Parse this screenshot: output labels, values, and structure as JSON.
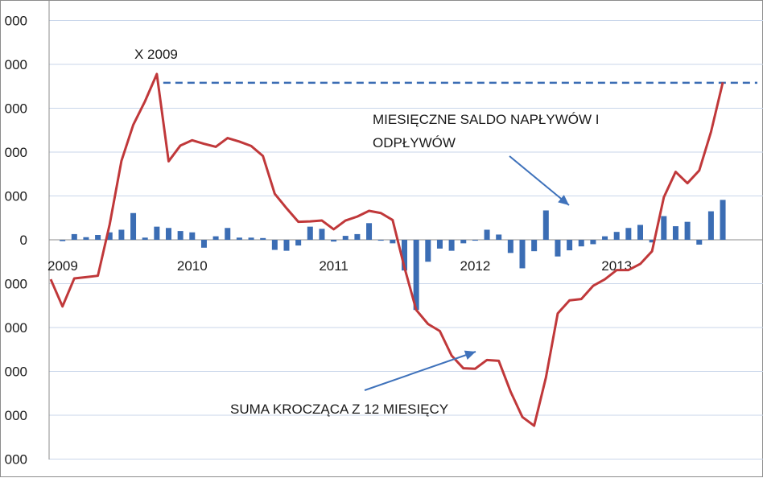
{
  "chart_data": {
    "type": "bar+line",
    "title": "",
    "xlabel": "",
    "ylabel": "",
    "y_tick_labels": [
      "000",
      "000",
      "000",
      "000",
      "000",
      "0",
      "000",
      "000",
      "000",
      "000",
      "000"
    ],
    "x_tick_labels": [
      "2009",
      "2010",
      "2011",
      "2012",
      "2013"
    ],
    "ylim": [
      -5000,
      5000
    ],
    "grid": "horizontal",
    "annotations": {
      "peak_label": "X 2009",
      "bars_label_line1": "MIESIĘCZNE SALDO NAPŁYWÓW I",
      "bars_label_line2": "ODPŁYWÓW",
      "line_label": "SUMA KROCZĄCA Z 12 MIESIĘCY"
    },
    "reference_line": {
      "value": 3580,
      "style": "dashed"
    },
    "x_months": [
      "2009-01",
      "2009-02",
      "2009-03",
      "2009-04",
      "2009-05",
      "2009-06",
      "2009-07",
      "2009-08",
      "2009-09",
      "2009-10",
      "2009-11",
      "2009-12",
      "2010-01",
      "2010-02",
      "2010-03",
      "2010-04",
      "2010-05",
      "2010-06",
      "2010-07",
      "2010-08",
      "2010-09",
      "2010-10",
      "2010-11",
      "2010-12",
      "2011-01",
      "2011-02",
      "2011-03",
      "2011-04",
      "2011-05",
      "2011-06",
      "2011-07",
      "2011-08",
      "2011-09",
      "2011-10",
      "2011-11",
      "2011-12",
      "2012-01",
      "2012-02",
      "2012-03",
      "2012-04",
      "2012-05",
      "2012-06",
      "2012-07",
      "2012-08",
      "2012-09",
      "2012-10",
      "2012-11",
      "2012-12",
      "2013-01",
      "2013-02",
      "2013-03",
      "2013-04",
      "2013-05",
      "2013-06",
      "2013-07",
      "2013-08",
      "2013-09",
      "2013-10",
      "2013-11",
      "2013-12"
    ],
    "series": [
      {
        "type": "bar",
        "color": "#3b6db4",
        "values": [
          0,
          -30,
          130,
          60,
          110,
          170,
          230,
          610,
          50,
          300,
          270,
          200,
          170,
          -180,
          80,
          270,
          50,
          50,
          40,
          -230,
          -250,
          -130,
          300,
          250,
          -40,
          90,
          130,
          380,
          -20,
          -80,
          -700,
          -1600,
          -500,
          -200,
          -250,
          -80,
          -20,
          230,
          120,
          -300,
          -650,
          -260,
          670,
          -380,
          -240,
          -150,
          -100,
          80,
          180,
          270,
          340,
          -60,
          540,
          310,
          410,
          -110,
          650,
          910,
          0,
          0
        ]
      },
      {
        "type": "line",
        "color": "#c0383a",
        "values": [
          -900,
          -1520,
          -880,
          -850,
          -820,
          350,
          1800,
          2620,
          3160,
          3780,
          1790,
          2150,
          2270,
          2190,
          2120,
          2320,
          2240,
          2140,
          1910,
          1050,
          720,
          410,
          420,
          440,
          240,
          440,
          530,
          660,
          610,
          450,
          -630,
          -1600,
          -1920,
          -2080,
          -2640,
          -2930,
          -2940,
          -2740,
          -2760,
          -3460,
          -4040,
          -4240,
          -3140,
          -1680,
          -1380,
          -1350,
          -1050,
          -900,
          -690,
          -690,
          -550,
          -260,
          970,
          1550,
          1290,
          1580,
          2460,
          3590,
          0,
          0
        ]
      }
    ]
  }
}
